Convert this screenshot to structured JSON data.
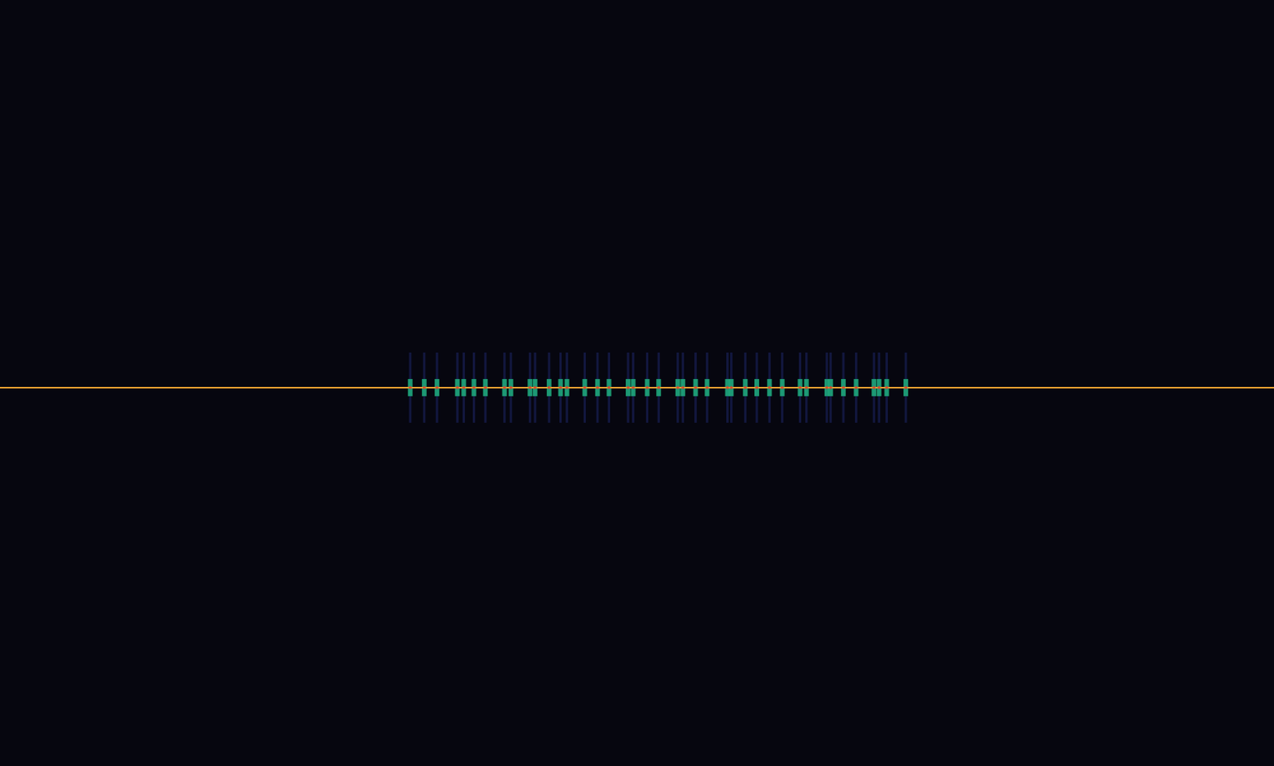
{
  "chart_data": {
    "type": "spectrogram",
    "xlim": [
      0,
      100
    ],
    "ylim": [
      0,
      100
    ],
    "tick_labels": false,
    "grid": false,
    "carrier": {
      "y": 49.4,
      "color": "#e8a030"
    },
    "pulses": {
      "color": "#20b080",
      "x": [
        32.2,
        33.3,
        34.3,
        35.9,
        36.4,
        37.2,
        38.1,
        39.6,
        40.1,
        41.6,
        42.0,
        43.1,
        44.0,
        44.5,
        45.9,
        46.9,
        47.8,
        49.3,
        49.7,
        50.8,
        51.7,
        53.2,
        53.6,
        54.6,
        55.5,
        57.1,
        57.4,
        58.5,
        59.4,
        60.4,
        61.4,
        62.8,
        63.3,
        64.9,
        65.2,
        66.2,
        67.2,
        68.6,
        69.0,
        69.6,
        71.1
      ]
    }
  }
}
